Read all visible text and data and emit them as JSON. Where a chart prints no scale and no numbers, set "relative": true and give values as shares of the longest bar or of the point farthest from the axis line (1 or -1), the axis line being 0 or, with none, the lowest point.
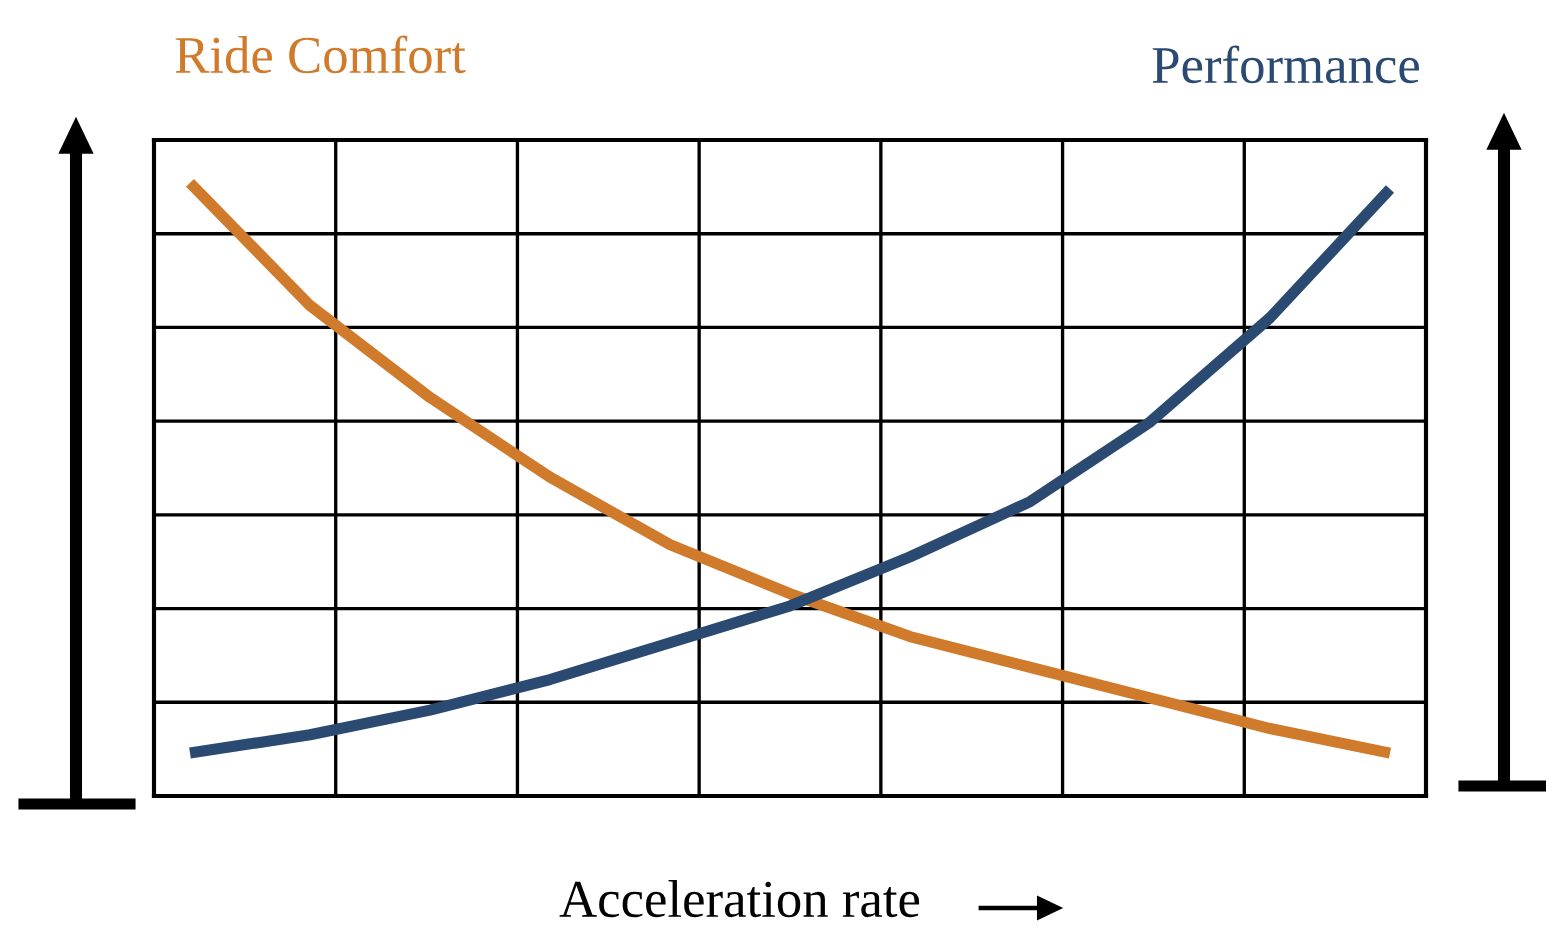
{
  "chart_data": {
    "type": "line",
    "relative": true,
    "xlabel": "Acceleration rate",
    "categories": [
      null,
      null,
      null,
      null,
      null,
      null,
      null,
      null,
      null,
      null,
      null
    ],
    "grid": true,
    "marker": "none",
    "line_style": "solid",
    "series": [
      {
        "name": "Ride Comfort",
        "color": "#d07a2c",
        "values": [
          1.0,
          0.8,
          0.65,
          0.52,
          0.41,
          0.33,
          0.26,
          0.21,
          0.16,
          0.11,
          0.07
        ]
      },
      {
        "name": "Performance",
        "color": "#2a4a72",
        "values": [
          0.07,
          0.1,
          0.14,
          0.19,
          0.25,
          0.31,
          0.39,
          0.48,
          0.61,
          0.78,
          0.99
        ]
      }
    ]
  }
}
